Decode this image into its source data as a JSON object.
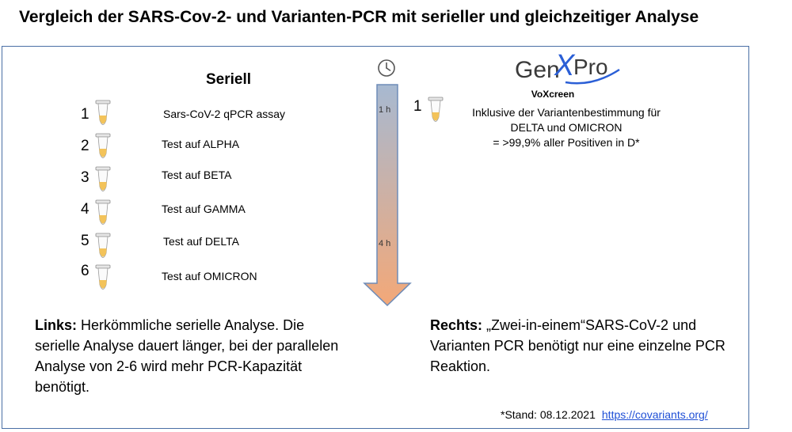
{
  "title": "Vergleich der SARS-Cov-2- und Varianten-PCR mit serieller und gleichzeitiger Analyse",
  "serial": {
    "heading": "Seriell",
    "items": [
      {
        "num": "1",
        "label": "Sars-CoV-2 qPCR assay"
      },
      {
        "num": "2",
        "label": "Test auf ALPHA"
      },
      {
        "num": "3",
        "label": "Test auf BETA"
      },
      {
        "num": "4",
        "label": "Test auf GAMMA"
      },
      {
        "num": "5",
        "label": "Test auf DELTA"
      },
      {
        "num": "6",
        "label": "Test auf OMICRON"
      }
    ]
  },
  "timeline": {
    "label_start": "1 h",
    "label_end": "4 h",
    "color_top": "#a7b9d1",
    "color_bottom": "#f3a878",
    "icon": "clock-icon"
  },
  "logo": {
    "text_left": "Gen",
    "text_x": "X",
    "text_right": "Pro"
  },
  "right": {
    "num": "1",
    "product": "VoXcreen",
    "line1": "Inklusive der Variantenbestimmung für",
    "line2": "DELTA und OMICRON",
    "line3": "= >99,9% aller Positiven in D*"
  },
  "left_note": {
    "bold": "Links:",
    "text": " Herkömmliche serielle Analyse. Die serielle Analyse dauert länger, bei der parallelen Analyse von 2-6 wird mehr PCR-Kapazität benötigt."
  },
  "right_note": {
    "bold": "Rechts:",
    "text": " „Zwei-in-einem“SARS-CoV-2 und Varianten PCR benötigt nur eine einzelne PCR Reaktion."
  },
  "footnote": {
    "text": "*Stand: 08.12.2021",
    "link": "https://covariants.org/"
  }
}
